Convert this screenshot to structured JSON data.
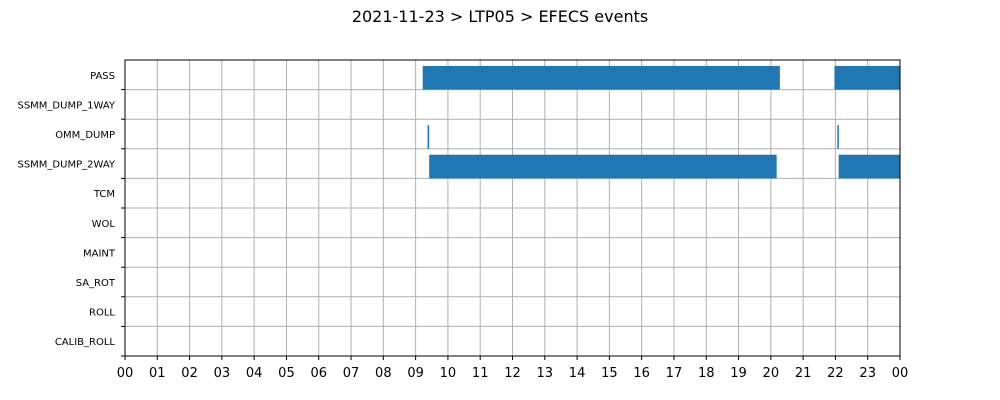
{
  "chart_data": {
    "type": "bar",
    "orientation": "horizontal-timeline",
    "title": "2021-11-23 > LTP05 > EFECS events",
    "xlabel": "",
    "ylabel": "",
    "x_range_hours": [
      0,
      24
    ],
    "x_tick_labels": [
      "00",
      "01",
      "02",
      "03",
      "04",
      "05",
      "06",
      "07",
      "08",
      "09",
      "10",
      "11",
      "12",
      "13",
      "14",
      "15",
      "16",
      "17",
      "18",
      "19",
      "20",
      "21",
      "22",
      "23",
      "00"
    ],
    "categories": [
      "PASS",
      "SSMM_DUMP_1WAY",
      "OMM_DUMP",
      "SSMM_DUMP_2WAY",
      "TCM",
      "WOL",
      "MAINT",
      "SA_ROT",
      "ROLL",
      "CALIB_ROLL"
    ],
    "grid": true,
    "bar_color": "#1f77b4",
    "series": [
      {
        "category": "PASS",
        "intervals_hours": [
          [
            9.22,
            20.28
          ],
          [
            21.97,
            24.0
          ]
        ]
      },
      {
        "category": "SSMM_DUMP_1WAY",
        "intervals_hours": []
      },
      {
        "category": "OMM_DUMP",
        "intervals_hours": [
          [
            9.37,
            9.42
          ],
          [
            22.06,
            22.1
          ]
        ]
      },
      {
        "category": "SSMM_DUMP_2WAY",
        "intervals_hours": [
          [
            9.42,
            20.18
          ],
          [
            22.1,
            24.0
          ]
        ]
      },
      {
        "category": "TCM",
        "intervals_hours": []
      },
      {
        "category": "WOL",
        "intervals_hours": []
      },
      {
        "category": "MAINT",
        "intervals_hours": []
      },
      {
        "category": "SA_ROT",
        "intervals_hours": []
      },
      {
        "category": "ROLL",
        "intervals_hours": []
      },
      {
        "category": "CALIB_ROLL",
        "intervals_hours": []
      }
    ]
  }
}
